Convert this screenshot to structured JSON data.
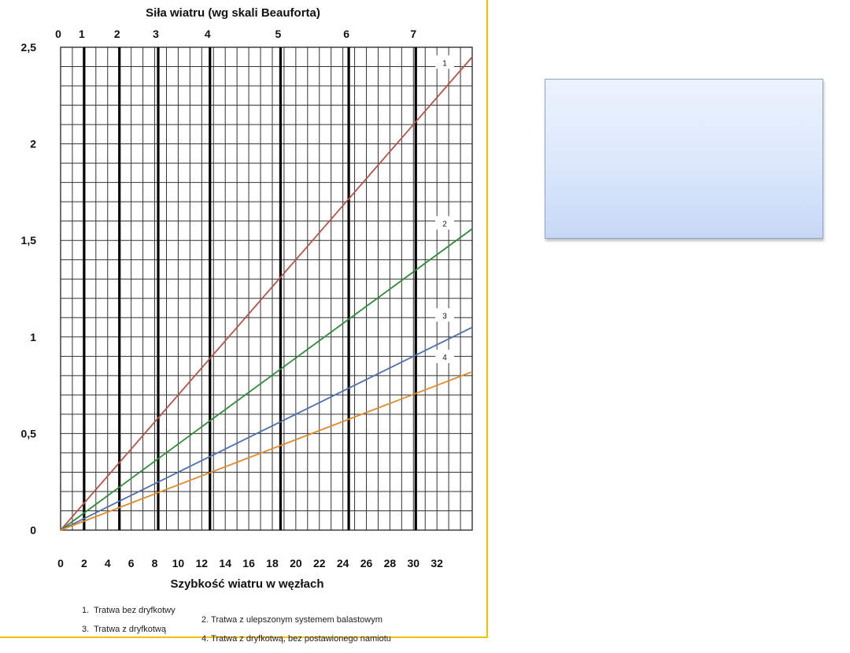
{
  "chart_data": {
    "type": "line",
    "title": "Siła wiatru (wg skali Beauforta)",
    "xlabel": "Szybkość wiatru w węzłach",
    "ylabel": "",
    "xlim": [
      0,
      35
    ],
    "ylim": [
      0,
      2.5
    ],
    "x_ticks": [
      0,
      2,
      4,
      6,
      8,
      10,
      12,
      14,
      16,
      18,
      20,
      22,
      24,
      26,
      28,
      30,
      32
    ],
    "y_ticks": [
      {
        "value": 0,
        "label": "0"
      },
      {
        "value": 0.5,
        "label": "0,5"
      },
      {
        "value": 1,
        "label": "1"
      },
      {
        "value": 1.5,
        "label": "1,5"
      },
      {
        "value": 2,
        "label": "2"
      },
      {
        "value": 2.5,
        "label": "2,5"
      }
    ],
    "beaufort_ticks": [
      {
        "label": "0",
        "knots": 0
      },
      {
        "label": "1",
        "knots": 2
      },
      {
        "label": "2",
        "knots": 5
      },
      {
        "label": "3",
        "knots": 8.3
      },
      {
        "label": "4",
        "knots": 12.7
      },
      {
        "label": "5",
        "knots": 18.7
      },
      {
        "label": "6",
        "knots": 24.5
      },
      {
        "label": "7",
        "knots": 30.2
      }
    ],
    "grid": true,
    "series": [
      {
        "name": "1",
        "color": "#b5534a",
        "x": [
          0,
          35
        ],
        "y": [
          0,
          2.45
        ]
      },
      {
        "name": "2",
        "color": "#2f8a3a",
        "x": [
          0,
          35
        ],
        "y": [
          0,
          1.56
        ]
      },
      {
        "name": "3",
        "color": "#4f6fae",
        "x": [
          0,
          35
        ],
        "y": [
          0,
          1.05
        ]
      },
      {
        "name": "4",
        "color": "#e08a2c",
        "x": [
          0,
          35
        ],
        "y": [
          0,
          0.82
        ]
      }
    ],
    "legend": [
      "1.  Tratwa bez dryfkotwy",
      "2. Tratwa z ulepszonym systemem balastowym",
      "3.  Tratwa z dryfkotwą",
      "4. Tratwa z dryfkotwą, bez postawionego namiotu"
    ]
  }
}
